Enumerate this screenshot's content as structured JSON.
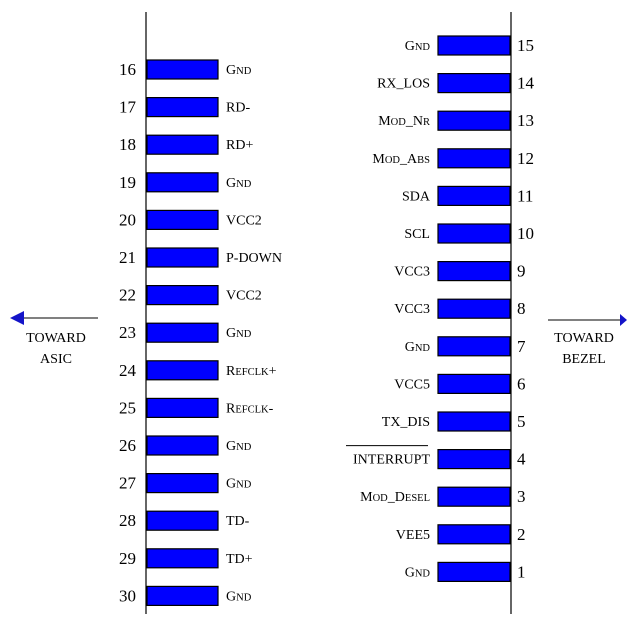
{
  "colors": {
    "pad": "#0000FF",
    "outline": "#000000",
    "arrow": "#1414C8"
  },
  "left_direction": {
    "line1": "TOWARD",
    "line2": "ASIC"
  },
  "right_direction": {
    "line1": "TOWARD",
    "line2": "BEZEL"
  },
  "left_pins": [
    {
      "number": "16",
      "label": "GND"
    },
    {
      "number": "17",
      "label": "RD-"
    },
    {
      "number": "18",
      "label": "RD+"
    },
    {
      "number": "19",
      "label": "GND"
    },
    {
      "number": "20",
      "label": "VCC2"
    },
    {
      "number": "21",
      "label": "P-DOWN"
    },
    {
      "number": "22",
      "label": "VCC2"
    },
    {
      "number": "23",
      "label": "GND"
    },
    {
      "number": "24",
      "label": "REFCLK+"
    },
    {
      "number": "25",
      "label": "REFCLK-"
    },
    {
      "number": "26",
      "label": "GND"
    },
    {
      "number": "27",
      "label": "GND"
    },
    {
      "number": "28",
      "label": "TD-"
    },
    {
      "number": "29",
      "label": "TD+"
    },
    {
      "number": "30",
      "label": "GND"
    }
  ],
  "right_pins": [
    {
      "number": "15",
      "label": "GND"
    },
    {
      "number": "14",
      "label": "RX_LOS"
    },
    {
      "number": "13",
      "label": "MOD_NR"
    },
    {
      "number": "12",
      "label": "MOD_ABS"
    },
    {
      "number": "11",
      "label": "SDA"
    },
    {
      "number": "10",
      "label": "SCL"
    },
    {
      "number": "9",
      "label": "VCC3"
    },
    {
      "number": "8",
      "label": "VCC3"
    },
    {
      "number": "7",
      "label": "GND"
    },
    {
      "number": "6",
      "label": "VCC5"
    },
    {
      "number": "5",
      "label": "TX_DIS"
    },
    {
      "number": "4",
      "label": "INTERRUPT"
    },
    {
      "number": "3",
      "label": "MOD_DESEL"
    },
    {
      "number": "2",
      "label": "VEE5"
    },
    {
      "number": "1",
      "label": "GND"
    }
  ]
}
